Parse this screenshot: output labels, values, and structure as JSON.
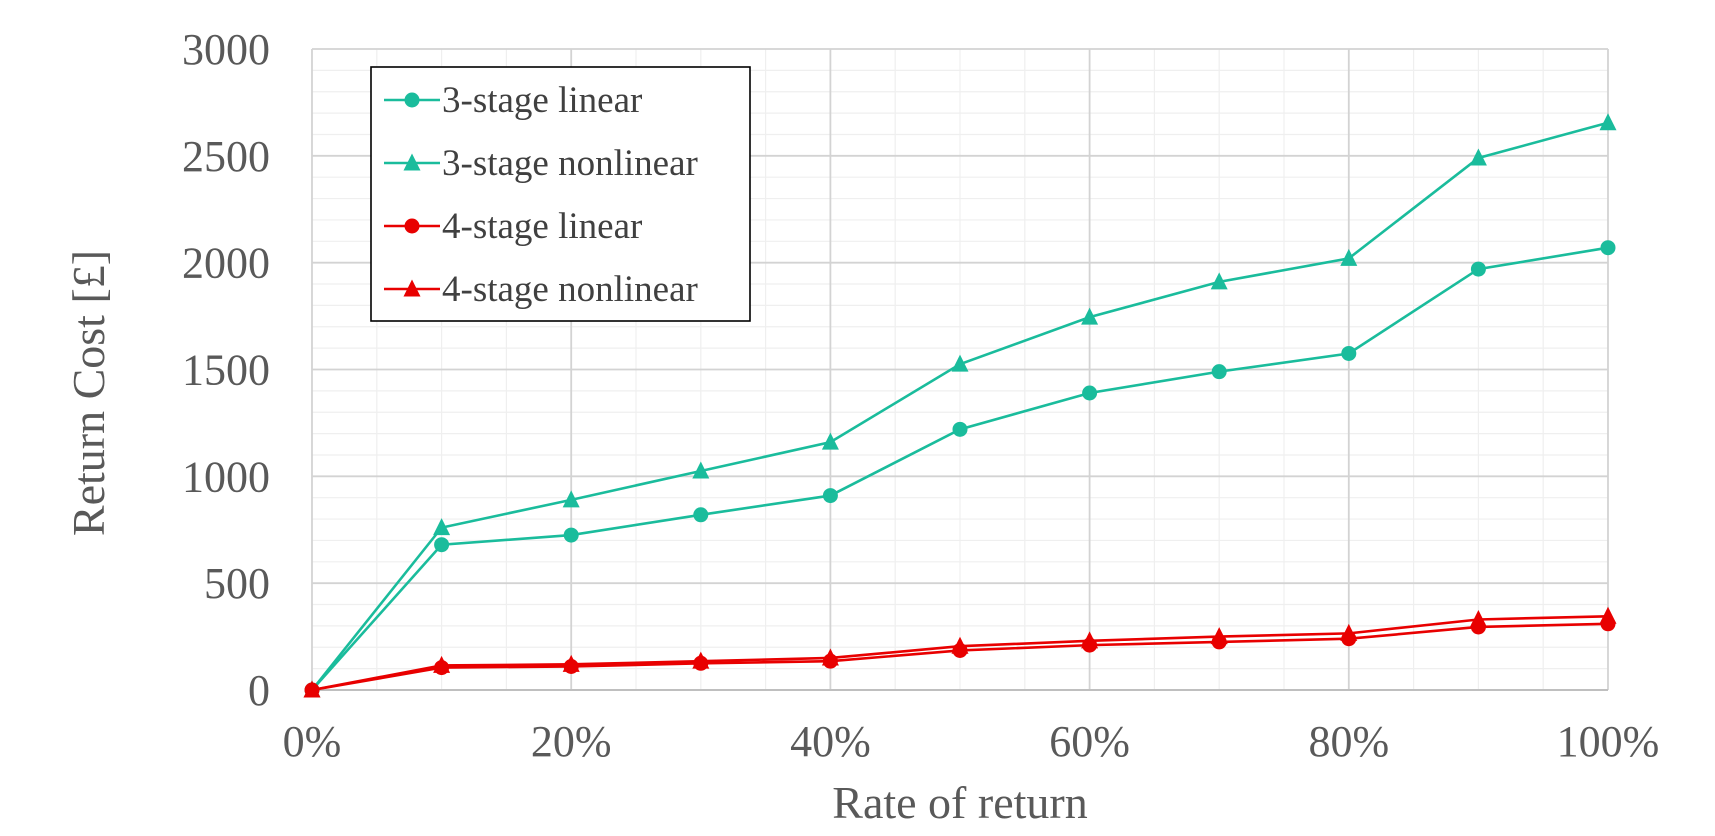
{
  "chart_data": {
    "type": "line",
    "x": [
      0,
      10,
      20,
      30,
      40,
      50,
      60,
      70,
      80,
      90,
      100
    ],
    "x_tick_labels": [
      "0%",
      "20%",
      "40%",
      "60%",
      "80%",
      "100%"
    ],
    "x_ticks": [
      0,
      20,
      40,
      60,
      80,
      100
    ],
    "y_ticks": [
      0,
      500,
      1000,
      1500,
      2000,
      2500,
      3000
    ],
    "xlim": [
      0,
      100
    ],
    "ylim": [
      0,
      3000
    ],
    "xlabel": "Rate of return",
    "ylabel": "Return Cost [£]",
    "grid": true,
    "legend_position": "top-left",
    "series": [
      {
        "name": "3-stage linear",
        "color": "#1ABC9C",
        "marker": "circle",
        "values": [
          0,
          680,
          725,
          820,
          910,
          1220,
          1390,
          1490,
          1575,
          1970,
          2070
        ]
      },
      {
        "name": "3-stage nonlinear",
        "color": "#1ABC9C",
        "marker": "triangle",
        "values": [
          0,
          760,
          890,
          1025,
          1160,
          1525,
          1745,
          1910,
          2020,
          2490,
          2655
        ]
      },
      {
        "name": "4-stage linear",
        "color": "#E80000",
        "marker": "circle",
        "values": [
          0,
          105,
          110,
          125,
          135,
          185,
          210,
          225,
          240,
          295,
          310
        ]
      },
      {
        "name": "4-stage nonlinear",
        "color": "#E80000",
        "marker": "triangle",
        "values": [
          0,
          115,
          120,
          135,
          150,
          205,
          230,
          250,
          265,
          330,
          345
        ]
      }
    ]
  }
}
